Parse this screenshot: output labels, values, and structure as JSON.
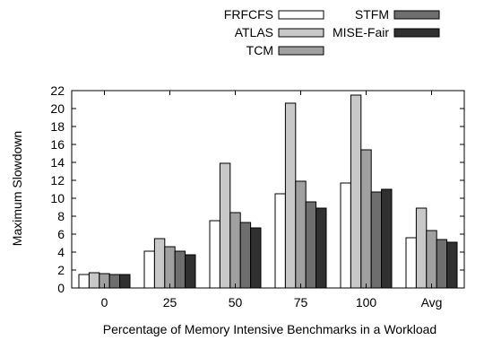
{
  "chart_data": {
    "type": "bar",
    "title": "",
    "xlabel": "Percentage of Memory Intensive Benchmarks in a Workload",
    "ylabel": "Maximum Slowdown",
    "ylim": [
      0,
      22
    ],
    "yticks": [
      "0",
      "2",
      "4",
      "6",
      "8",
      "10",
      "12",
      "14",
      "16",
      "18",
      "20",
      "22"
    ],
    "categories": [
      "0",
      "25",
      "50",
      "75",
      "100",
      "Avg"
    ],
    "grid": false,
    "legend_position": "top",
    "series": [
      {
        "name": "FRFCFS",
        "color": "#ffffff",
        "values": [
          1.5,
          4.1,
          7.5,
          10.5,
          11.7,
          5.6
        ]
      },
      {
        "name": "ATLAS",
        "color": "#c8c8c8",
        "values": [
          1.7,
          5.5,
          13.9,
          20.6,
          21.5,
          8.9
        ]
      },
      {
        "name": "TCM",
        "color": "#a0a0a0",
        "values": [
          1.6,
          4.6,
          8.4,
          11.9,
          15.4,
          6.4
        ]
      },
      {
        "name": "STFM",
        "color": "#6e6e6e",
        "values": [
          1.5,
          4.1,
          7.3,
          9.6,
          10.7,
          5.4
        ]
      },
      {
        "name": "MISE-Fair",
        "color": "#303030",
        "values": [
          1.5,
          3.7,
          6.7,
          8.9,
          11.0,
          5.1
        ]
      }
    ]
  }
}
